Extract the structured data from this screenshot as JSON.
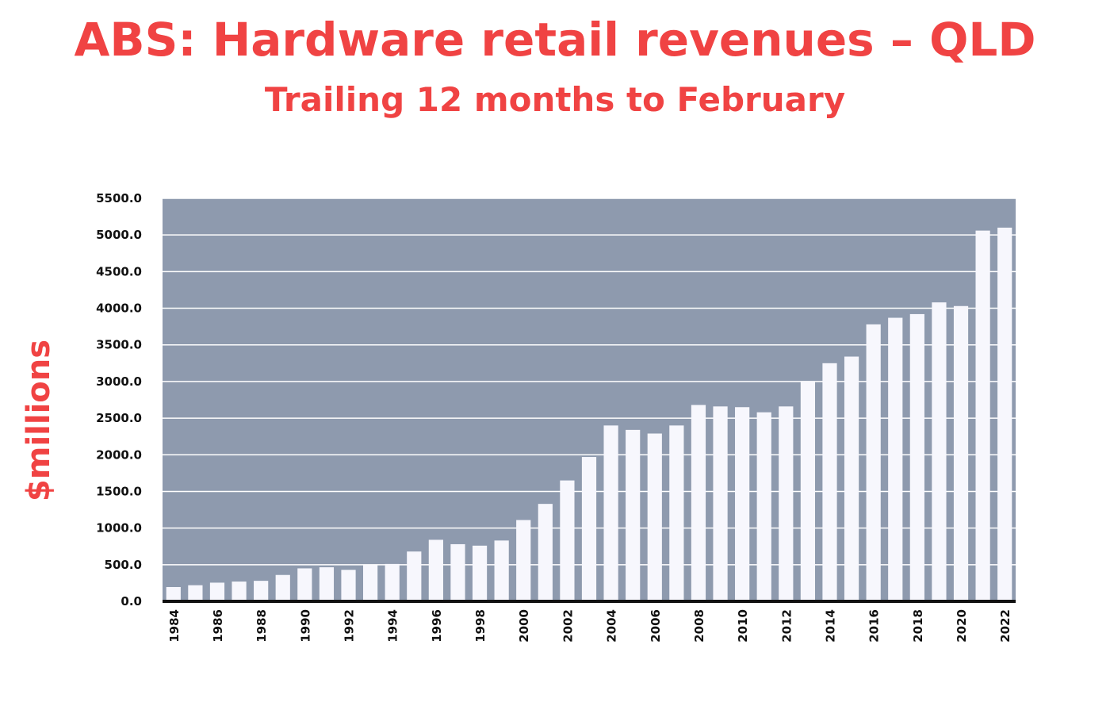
{
  "chart_data": {
    "type": "bar",
    "title": "ABS: Hardware retail revenues – QLD",
    "subtitle": "Trailing 12 months to February",
    "xlabel": "",
    "ylabel": "$millions",
    "ylim": [
      0,
      5500
    ],
    "yticks": [
      "0.0",
      "500.0",
      "1000.0",
      "1500.0",
      "2000.0",
      "2500.0",
      "3000.0",
      "3500.0",
      "4000.0",
      "4500.0",
      "5000.0",
      "5500.0"
    ],
    "grid": true,
    "categories": [
      "1984",
      "1985",
      "1986",
      "1987",
      "1988",
      "1989",
      "1990",
      "1991",
      "1992",
      "1993",
      "1994",
      "1995",
      "1996",
      "1997",
      "1998",
      "1999",
      "2000",
      "2001",
      "2002",
      "2003",
      "2004",
      "2005",
      "2006",
      "2007",
      "2008",
      "2009",
      "2010",
      "2011",
      "2012",
      "2013",
      "2014",
      "2015",
      "2016",
      "2017",
      "2018",
      "2019",
      "2020",
      "2021",
      "2022"
    ],
    "xtick_labels": [
      "1984",
      "",
      "1986",
      "",
      "1988",
      "",
      "1990",
      "",
      "1992",
      "",
      "1994",
      "",
      "1996",
      "",
      "1998",
      "",
      "2000",
      "",
      "2002",
      "",
      "2004",
      "",
      "2006",
      "",
      "2008",
      "",
      "2010",
      "",
      "2012",
      "",
      "2014",
      "",
      "2016",
      "",
      "2018",
      "",
      "2020",
      "",
      "2022"
    ],
    "values": [
      195,
      220,
      255,
      270,
      280,
      360,
      450,
      465,
      430,
      495,
      510,
      680,
      840,
      780,
      760,
      830,
      1110,
      1330,
      1650,
      1970,
      2400,
      2340,
      2290,
      2400,
      2680,
      2660,
      2650,
      2580,
      2660,
      3000,
      3250,
      3340,
      3780,
      3870,
      3920,
      4080,
      4030,
      5060,
      5100
    ],
    "colors": {
      "plot_background": "#8e9aae",
      "bar": "#f7f7fd",
      "gridline": "#ffffff",
      "axis": "#111111",
      "title": "#f04343"
    }
  }
}
